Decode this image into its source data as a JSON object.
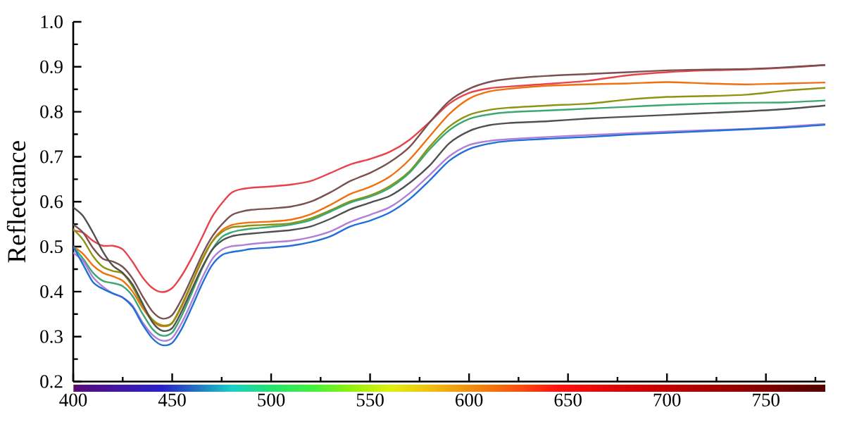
{
  "chart_data": {
    "type": "line",
    "ylabel": "Reflectance",
    "xlim": [
      400,
      780
    ],
    "ylim": [
      0.2,
      1.0
    ],
    "xticks": [
      400,
      {
        "value": 425,
        "label": null
      },
      450,
      {
        "value": 475,
        "label": null
      },
      500,
      {
        "value": 525,
        "label": null
      },
      550,
      {
        "value": 575,
        "label": null
      },
      600,
      {
        "value": 625,
        "label": null
      },
      650,
      {
        "value": 675,
        "label": null
      },
      700,
      {
        "value": 725,
        "label": null
      },
      750,
      {
        "value": 775,
        "label": null
      }
    ],
    "yticks": [
      0.2,
      {
        "value": 0.25,
        "label": null
      },
      0.3,
      {
        "value": 0.35,
        "label": null
      },
      0.4,
      {
        "value": 0.45,
        "label": null
      },
      0.5,
      {
        "value": 0.55,
        "label": null
      },
      0.6,
      {
        "value": 0.65,
        "label": null
      },
      0.7,
      {
        "value": 0.75,
        "label": null
      },
      0.8,
      {
        "value": 0.85,
        "label": null
      },
      0.9,
      {
        "value": 0.95,
        "label": null
      },
      {
        "value": 1,
        "label": "1.0"
      }
    ],
    "line_style": "solid",
    "x": [
      400,
      405,
      410,
      415,
      420,
      425,
      430,
      435,
      440,
      445,
      450,
      455,
      460,
      465,
      470,
      475,
      480,
      485,
      490,
      500,
      510,
      520,
      530,
      540,
      550,
      560,
      570,
      580,
      590,
      600,
      610,
      620,
      640,
      660,
      680,
      700,
      720,
      740,
      760,
      780
    ],
    "series": [
      {
        "color": "#e8434a",
        "values": [
          0.536,
          0.531,
          0.513,
          0.502,
          0.502,
          0.494,
          0.466,
          0.432,
          0.408,
          0.399,
          0.408,
          0.437,
          0.476,
          0.52,
          0.565,
          0.596,
          0.62,
          0.628,
          0.631,
          0.634,
          0.638,
          0.646,
          0.664,
          0.683,
          0.695,
          0.711,
          0.738,
          0.777,
          0.818,
          0.842,
          0.852,
          0.856,
          0.862,
          0.869,
          0.881,
          0.888,
          0.892,
          0.894,
          0.898,
          0.904
        ]
      },
      {
        "color": "#7a5050",
        "values": [
          0.549,
          0.531,
          0.497,
          0.473,
          0.467,
          0.455,
          0.429,
          0.39,
          0.356,
          0.34,
          0.348,
          0.385,
          0.432,
          0.481,
          0.521,
          0.549,
          0.57,
          0.578,
          0.582,
          0.585,
          0.589,
          0.6,
          0.621,
          0.646,
          0.664,
          0.688,
          0.722,
          0.776,
          0.824,
          0.851,
          0.866,
          0.873,
          0.88,
          0.884,
          0.888,
          0.892,
          0.894,
          0.895,
          0.899,
          0.904
        ]
      },
      {
        "color": "#f07010",
        "values": [
          0.5,
          0.484,
          0.458,
          0.442,
          0.434,
          0.424,
          0.4,
          0.364,
          0.335,
          0.323,
          0.33,
          0.369,
          0.419,
          0.468,
          0.51,
          0.536,
          0.548,
          0.552,
          0.554,
          0.556,
          0.56,
          0.572,
          0.593,
          0.617,
          0.633,
          0.656,
          0.694,
          0.745,
          0.795,
          0.829,
          0.845,
          0.851,
          0.858,
          0.861,
          0.863,
          0.866,
          0.863,
          0.861,
          0.863,
          0.865
        ]
      },
      {
        "color": "#8c9410",
        "values": [
          0.539,
          0.515,
          0.479,
          0.455,
          0.446,
          0.44,
          0.411,
          0.369,
          0.338,
          0.325,
          0.331,
          0.372,
          0.421,
          0.471,
          0.51,
          0.532,
          0.543,
          0.545,
          0.547,
          0.549,
          0.552,
          0.563,
          0.581,
          0.601,
          0.614,
          0.635,
          0.668,
          0.722,
          0.767,
          0.793,
          0.804,
          0.809,
          0.814,
          0.818,
          0.827,
          0.833,
          0.835,
          0.838,
          0.847,
          0.853
        ]
      },
      {
        "color": "#3aa870",
        "values": [
          0.5,
          0.473,
          0.442,
          0.424,
          0.419,
          0.412,
          0.39,
          0.351,
          0.317,
          0.302,
          0.309,
          0.348,
          0.398,
          0.45,
          0.492,
          0.521,
          0.532,
          0.537,
          0.54,
          0.544,
          0.549,
          0.559,
          0.578,
          0.598,
          0.611,
          0.631,
          0.665,
          0.716,
          0.759,
          0.784,
          0.794,
          0.799,
          0.803,
          0.807,
          0.811,
          0.815,
          0.818,
          0.82,
          0.821,
          0.825
        ]
      },
      {
        "color": "#505050",
        "values": [
          0.587,
          0.568,
          0.531,
          0.489,
          0.458,
          0.442,
          0.416,
          0.374,
          0.332,
          0.313,
          0.319,
          0.358,
          0.406,
          0.453,
          0.492,
          0.513,
          0.523,
          0.527,
          0.529,
          0.533,
          0.537,
          0.545,
          0.562,
          0.583,
          0.598,
          0.613,
          0.642,
          0.68,
          0.73,
          0.757,
          0.77,
          0.775,
          0.779,
          0.785,
          0.789,
          0.793,
          0.797,
          0.801,
          0.806,
          0.814
        ]
      },
      {
        "color": "#b080d8",
        "values": [
          0.486,
          0.468,
          0.432,
          0.411,
          0.396,
          0.387,
          0.369,
          0.332,
          0.304,
          0.291,
          0.297,
          0.332,
          0.379,
          0.429,
          0.471,
          0.493,
          0.501,
          0.503,
          0.506,
          0.51,
          0.513,
          0.521,
          0.534,
          0.555,
          0.571,
          0.588,
          0.619,
          0.659,
          0.701,
          0.726,
          0.735,
          0.739,
          0.744,
          0.748,
          0.752,
          0.756,
          0.759,
          0.762,
          0.767,
          0.773
        ]
      },
      {
        "color": "#2070d8",
        "values": [
          0.5,
          0.46,
          0.421,
          0.406,
          0.396,
          0.387,
          0.366,
          0.327,
          0.296,
          0.281,
          0.286,
          0.319,
          0.366,
          0.416,
          0.458,
          0.481,
          0.488,
          0.491,
          0.495,
          0.498,
          0.502,
          0.51,
          0.523,
          0.545,
          0.558,
          0.576,
          0.606,
          0.647,
          0.691,
          0.717,
          0.729,
          0.735,
          0.74,
          0.744,
          0.749,
          0.753,
          0.757,
          0.761,
          0.765,
          0.771
        ]
      }
    ]
  }
}
